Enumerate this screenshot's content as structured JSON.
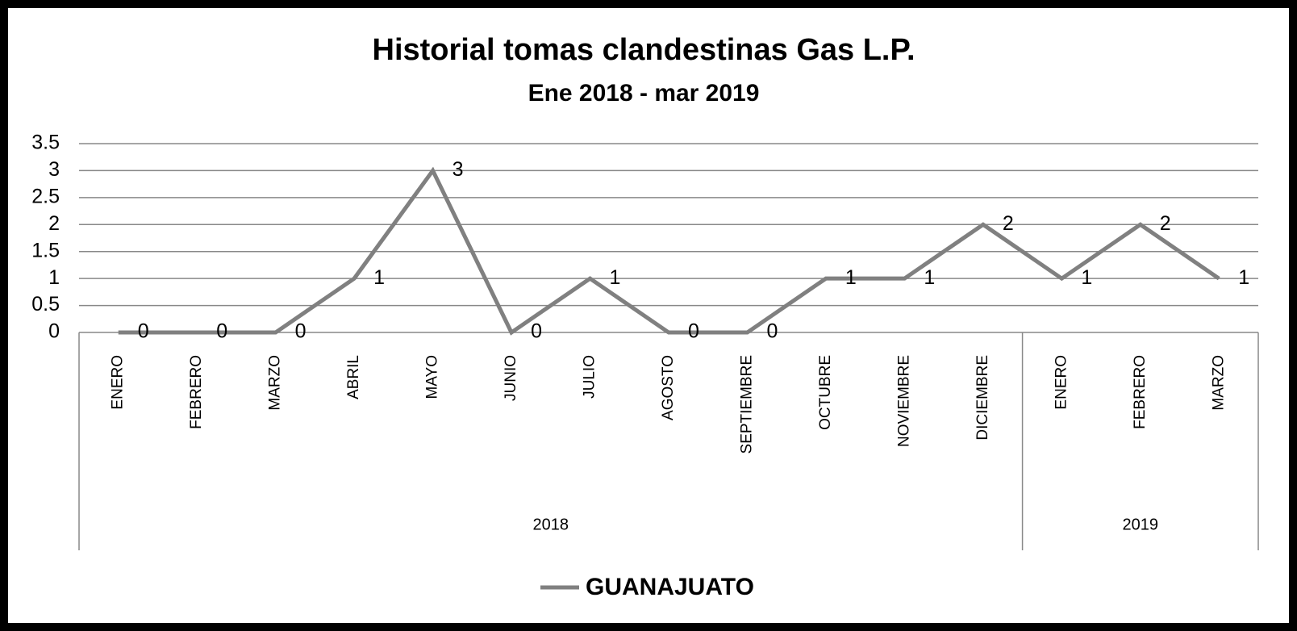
{
  "chart_data": {
    "type": "line",
    "title": "Historial tomas clandestinas Gas L.P.",
    "subtitle": "Ene 2018 - mar 2019",
    "category_groups": [
      {
        "label": "2018",
        "categories": [
          "ENERO",
          "FEBRERO",
          "MARZO",
          "ABRIL",
          "MAYO",
          "JUNIO",
          "JULIO",
          "AGOSTO",
          "SEPTIEMBRE",
          "OCTUBRE",
          "NOVIEMBRE",
          "DICIEMBRE"
        ]
      },
      {
        "label": "2019",
        "categories": [
          "ENERO",
          "FEBRERO",
          "MARZO"
        ]
      }
    ],
    "series": [
      {
        "name": "GUANAJUATO",
        "color": "#808080",
        "values": [
          0,
          0,
          0,
          1,
          3,
          0,
          1,
          0,
          0,
          1,
          1,
          2,
          1,
          2,
          1
        ]
      }
    ],
    "ylim": [
      0,
      3.5
    ],
    "yticks": [
      0,
      0.5,
      1,
      1.5,
      2,
      2.5,
      3,
      3.5
    ],
    "grid": true,
    "data_labels": true,
    "legend": "bottom"
  }
}
